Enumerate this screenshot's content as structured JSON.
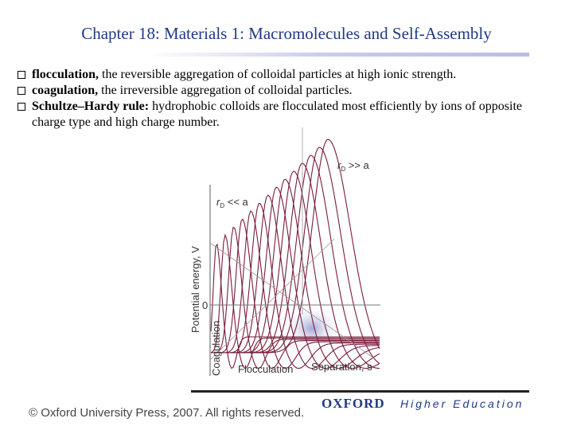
{
  "slide": {
    "title": "Chapter 18: Materials 1: Macromolecules and Self-Assembly"
  },
  "bullets": [
    {
      "term": "flocculation,",
      "text": " the reversible aggregation of colloidal particles at high ionic strength."
    },
    {
      "term": "coagulation,",
      "text": " the irreversible aggregation of colloidal particles."
    },
    {
      "term": "Schultze–Hardy rule:",
      "text": " hydrophobic colloids are flocculated most efficiently by ions of opposite charge type and high charge number."
    }
  ],
  "figure": {
    "ylabel": "Potential energy, V",
    "xlabel": "Separation, s",
    "zero_label": "0",
    "coagulation_label": "Coagulation",
    "flocculation_label": "Flocculation",
    "label_large_r": "r",
    "label_large_sub": "D",
    "label_large_rest": " >> a",
    "label_small_r": "r",
    "label_small_sub": "D",
    "label_small_rest": " << a",
    "curve_count": 14,
    "curve_color": "#7a1c3a",
    "highlight_color": "#9fa8d8"
  },
  "footer": {
    "copyright": "© Oxford University Press, 2007. All rights reserved.",
    "oxford": "OXFORD",
    "higher_education": "Higher Education"
  }
}
